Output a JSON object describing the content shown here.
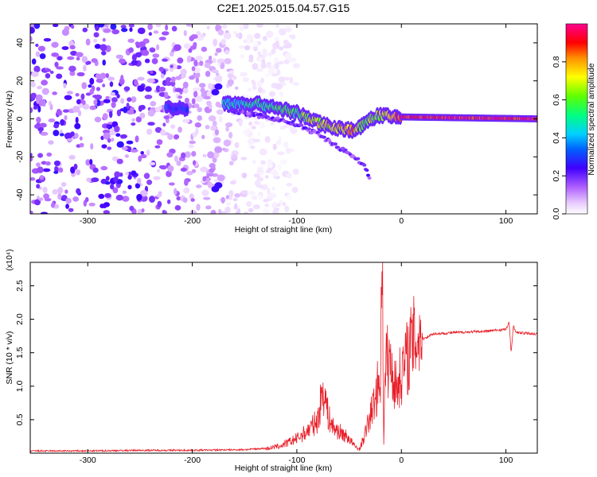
{
  "title": "C2E1.2025.015.04.57.G15",
  "chart_data": [
    {
      "type": "heatmap",
      "title": "C2E1.2025.015.04.57.G15",
      "xlabel": "Height of straight line (km)",
      "ylabel": "Frequency (Hz)",
      "xlim": [
        -355,
        130
      ],
      "ylim": [
        -50,
        50
      ],
      "x_ticks": [
        -300,
        -200,
        -100,
        0,
        100
      ],
      "x_tick_labels": [
        "-300",
        "-200",
        "-100",
        "0",
        "100"
      ],
      "y_ticks": [
        -40,
        -20,
        0,
        20,
        40
      ],
      "y_tick_labels": [
        "-40",
        "-20",
        "0",
        "20",
        "40"
      ],
      "colorbar": {
        "label": "Normalized spectral amplitude",
        "range": [
          0,
          1
        ],
        "ticks": [
          0.0,
          0.2,
          0.4,
          0.6,
          0.8
        ],
        "tick_labels": [
          "0.0",
          "0.2",
          "0.4",
          "0.6",
          "0.8"
        ],
        "colors": [
          "#ffffff",
          "#e6c8ff",
          "#c080ff",
          "#8000ff",
          "#0000ff",
          "#00c8ff",
          "#00ff80",
          "#80ff00",
          "#ffff00",
          "#ff8000",
          "#ff0000",
          "#ff0080"
        ]
      },
      "ridge": {
        "name": "main doppler ridge",
        "x": [
          -225,
          -215,
          -165,
          -140,
          -120,
          -100,
          -80,
          -60,
          -45,
          -35,
          -30,
          -20,
          -10,
          0,
          130
        ],
        "frequency": [
          6,
          5,
          8,
          8,
          6,
          3,
          -2,
          -5,
          -6,
          -3,
          0,
          2,
          1,
          1,
          0
        ],
        "amplitude": [
          0.35,
          0.3,
          0.5,
          0.55,
          0.6,
          0.6,
          0.75,
          0.8,
          0.85,
          0.6,
          0.7,
          0.7,
          0.85,
          1.0,
          1.0
        ]
      },
      "secondary_ridge": {
        "x": [
          -165,
          -150,
          -120,
          -100,
          -80,
          -60,
          -45,
          -35,
          -30
        ],
        "frequency": [
          5,
          3,
          0,
          -3,
          -8,
          -15,
          -20,
          -25,
          -31
        ]
      },
      "noise_region_x": [
        -355,
        -120
      ]
    },
    {
      "type": "line",
      "xlabel": "Height of straight line (km)",
      "ylabel": "SNR (10 * v/v)",
      "y_multiplier": "(x10⁴)",
      "xlim": [
        -355,
        130
      ],
      "ylim": [
        0,
        2.85
      ],
      "x_ticks": [
        -300,
        -200,
        -100,
        0,
        100
      ],
      "x_tick_labels": [
        "-300",
        "-200",
        "-100",
        "0",
        "100"
      ],
      "y_ticks": [
        0.5,
        1.0,
        1.5,
        2.0,
        2.5
      ],
      "y_tick_labels": [
        "0.5",
        "1.0",
        "1.5",
        "2.0",
        "2.5"
      ],
      "line_color": "#e8202a",
      "series": [
        {
          "x": [
            -355,
            -300,
            -250,
            -200,
            -150,
            -130,
            -115,
            -100,
            -90,
            -80,
            -75,
            -72,
            -70,
            -65,
            -60,
            -50,
            -45,
            -40,
            -35,
            -30,
            -25,
            -20,
            -18,
            -17,
            -15,
            -10,
            -5,
            0,
            5,
            10,
            20,
            30,
            50,
            80,
            100,
            103,
            105,
            107,
            110,
            130
          ],
          "y": [
            0.02,
            0.02,
            0.03,
            0.03,
            0.04,
            0.06,
            0.1,
            0.2,
            0.3,
            0.45,
            0.9,
            0.7,
            0.5,
            0.35,
            0.3,
            0.2,
            0.1,
            0.05,
            0.25,
            0.5,
            0.75,
            1.1,
            2.85,
            0.1,
            1.3,
            1.2,
            0.9,
            1.1,
            1.3,
            1.5,
            1.7,
            1.78,
            1.8,
            1.82,
            1.85,
            1.95,
            1.5,
            1.9,
            1.8,
            1.78
          ]
        }
      ]
    }
  ]
}
